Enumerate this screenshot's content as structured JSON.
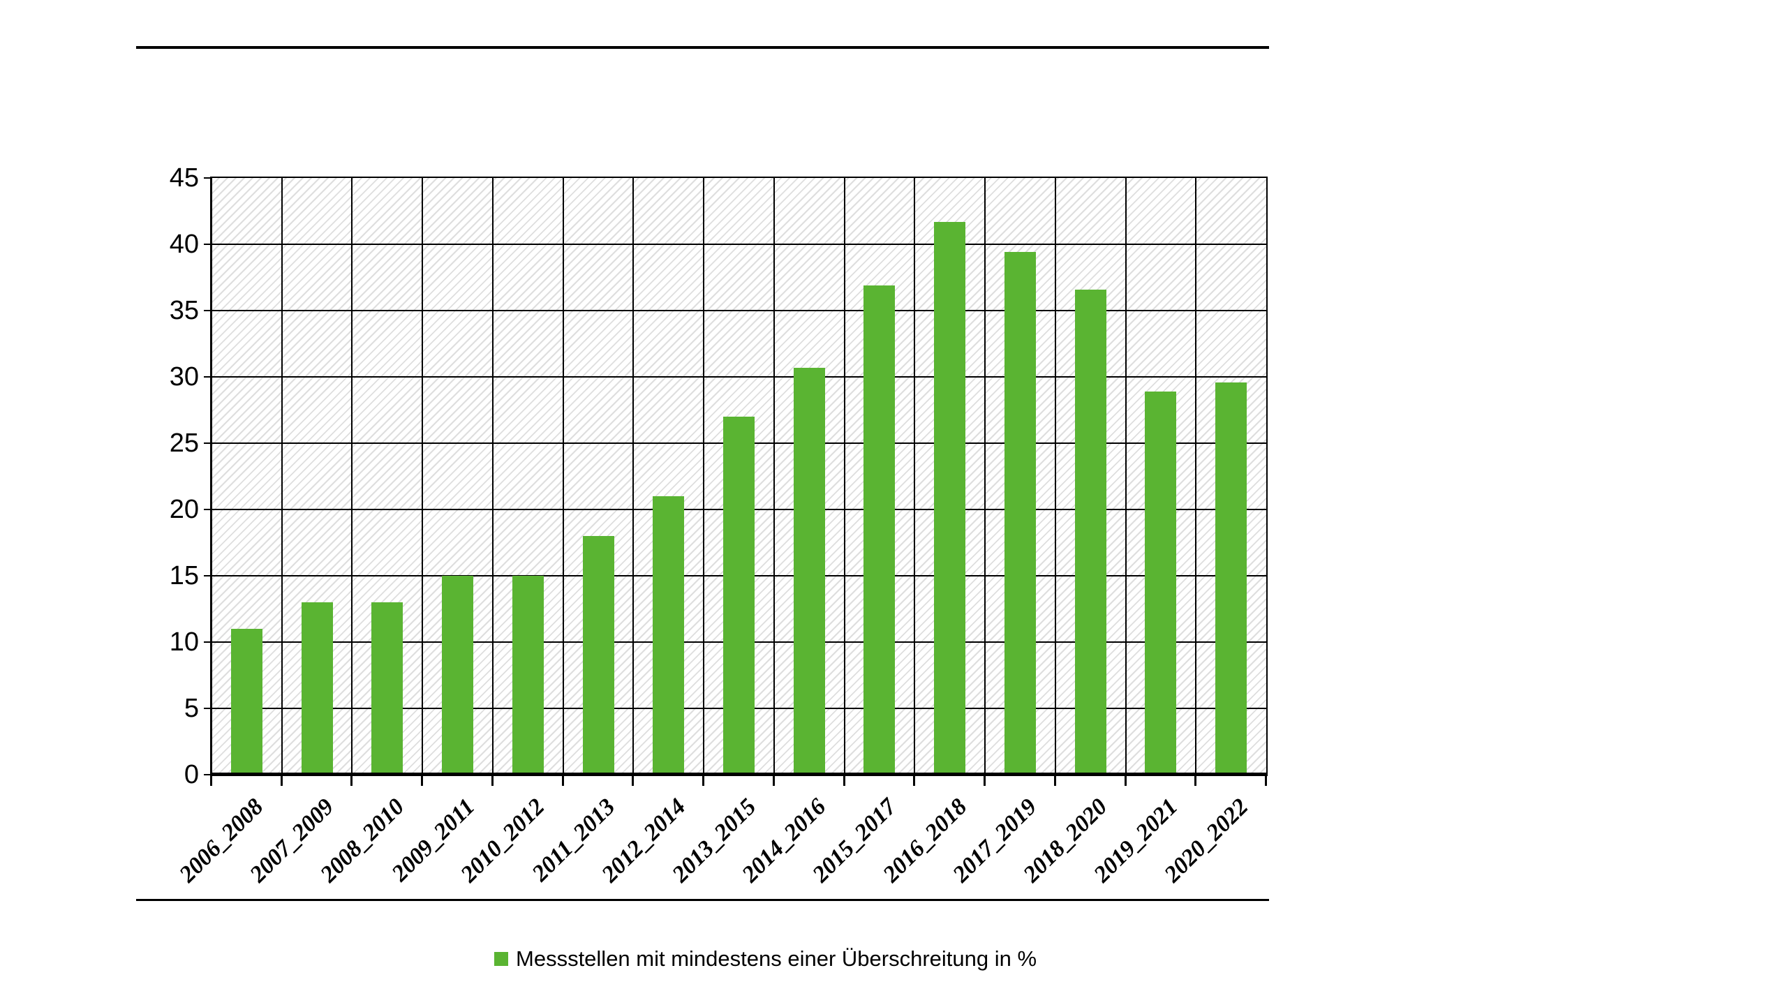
{
  "chart_data": {
    "type": "bar",
    "title": "",
    "xlabel": "",
    "ylabel": "",
    "categories": [
      "2006_2008",
      "2007_2009",
      "2008_2010",
      "2009_2011",
      "2010_2012",
      "2011_2013",
      "2012_2014",
      "2013_2015",
      "2014_2016",
      "2015_2017",
      "2016_2018",
      "2017_2019",
      "2018_2020",
      "2019_2021",
      "2020_2022"
    ],
    "values": [
      11,
      13,
      13,
      15,
      15,
      18,
      21,
      27,
      30.7,
      36.9,
      41.7,
      39.4,
      36.6,
      28.9,
      29.6
    ],
    "series_name": "Messstellen mit mindestens einer Überschreitung in %",
    "ylim": [
      0,
      45
    ],
    "ytick_step": 5,
    "y_ticks": [
      "0",
      "5",
      "10",
      "15",
      "20",
      "25",
      "30",
      "35",
      "40",
      "45"
    ],
    "grid": "on",
    "legend_position": "bottom-center",
    "bar_color": "#5ab432",
    "gridline_color": "#000000",
    "plot_background": "hatched-diagonal-light-gray"
  },
  "legend": {
    "label": "Messstellen mit mindestens einer Überschreitung in %"
  }
}
